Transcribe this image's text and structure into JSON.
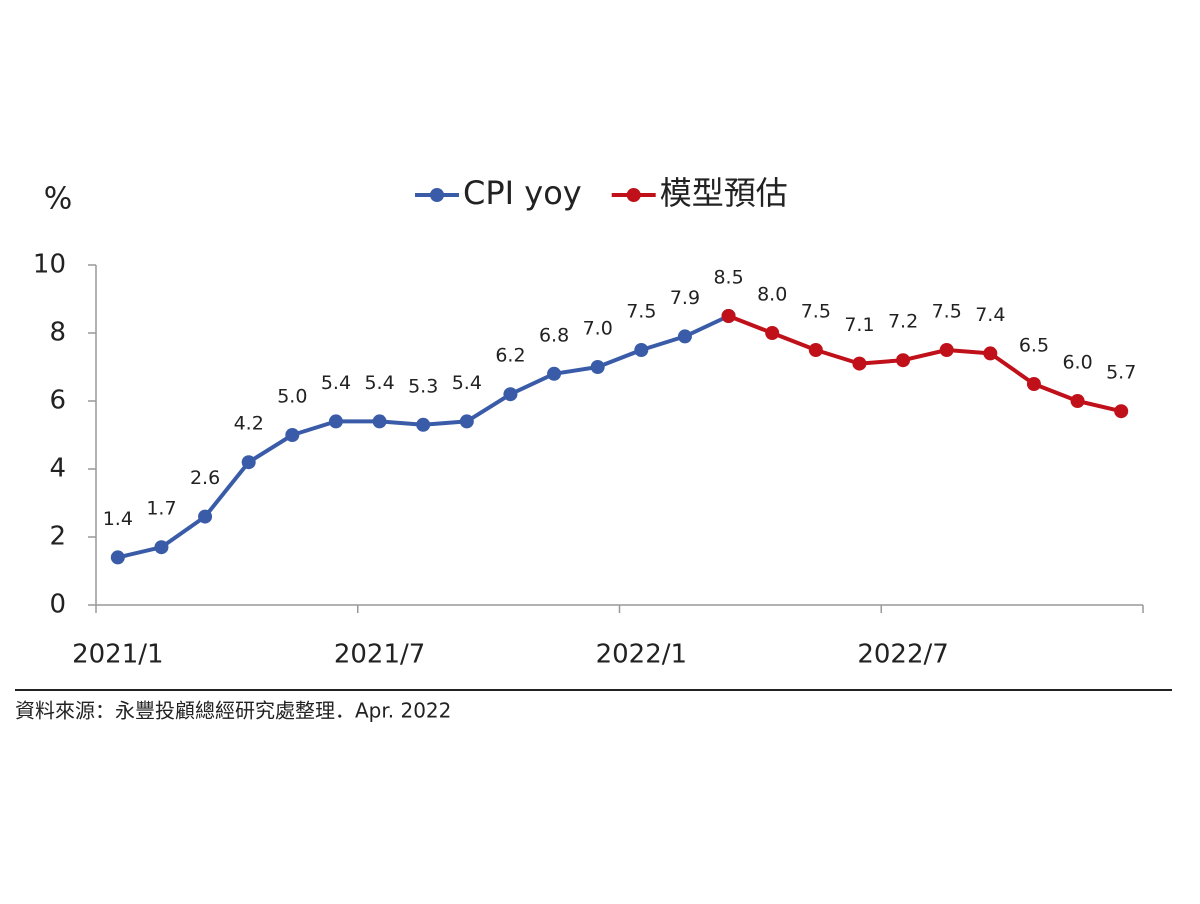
{
  "chart_data": {
    "type": "line",
    "y_label": "%",
    "categories": [
      "2021/1",
      null,
      null,
      null,
      null,
      null,
      "2021/7",
      null,
      null,
      null,
      null,
      null,
      "2022/1",
      null,
      null,
      null,
      null,
      null,
      "2022/7",
      null,
      null,
      null,
      null,
      null
    ],
    "series": [
      {
        "name": "CPI yoy",
        "color": "#3a5ca8",
        "values": [
          1.4,
          1.7,
          2.6,
          4.2,
          5.0,
          5.4,
          5.4,
          5.3,
          5.4,
          6.2,
          6.8,
          7.0,
          7.5,
          7.9,
          8.5,
          null,
          null,
          null,
          null,
          null,
          null,
          null,
          null,
          null
        ],
        "value_labels": [
          "1.4",
          "1.7",
          "2.6",
          "4.2",
          "5.0",
          "5.4",
          "5.4",
          "5.3",
          "5.4",
          "6.2",
          "6.8",
          "7.0",
          "7.5",
          "7.9",
          "8.5",
          null,
          null,
          null,
          null,
          null,
          null,
          null,
          null,
          null
        ]
      },
      {
        "name": "模型預估",
        "color": "#c0111a",
        "values": [
          null,
          null,
          null,
          null,
          null,
          null,
          null,
          null,
          null,
          null,
          null,
          null,
          null,
          null,
          8.5,
          8.0,
          7.5,
          7.1,
          7.2,
          7.5,
          7.4,
          6.5,
          6.0,
          5.7
        ],
        "value_labels": [
          null,
          null,
          null,
          null,
          null,
          null,
          null,
          null,
          null,
          null,
          null,
          null,
          null,
          null,
          null,
          "8.0",
          "7.5",
          "7.1",
          "7.2",
          "7.5",
          "7.4",
          "6.5",
          "6.0",
          "5.7"
        ]
      }
    ],
    "ylim": [
      0,
      10
    ],
    "yticks": [
      0,
      2,
      4,
      6,
      8,
      10
    ],
    "source": "資料來源：永豐投顧總經研究處整理．Apr. 2022"
  }
}
